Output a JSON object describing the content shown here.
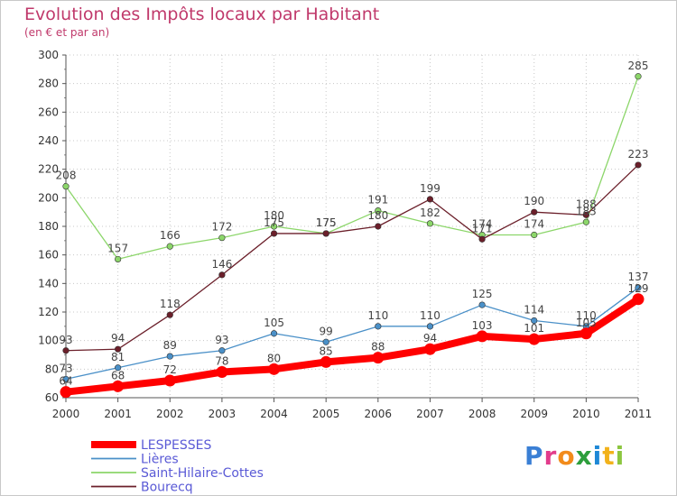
{
  "title": "Evolution des Impôts locaux par Habitant",
  "subtitle": "(en € et par an)",
  "logo": {
    "text": "Proxiti",
    "colors": [
      "#3a7fd5",
      "#e23c8c",
      "#f28b1b",
      "#2d9e3c",
      "#1e88d6",
      "#f2b21b",
      "#8cc63f"
    ]
  },
  "chart_data": {
    "type": "line",
    "categories": [
      "2000",
      "2001",
      "2002",
      "2003",
      "2004",
      "2005",
      "2006",
      "2007",
      "2008",
      "2009",
      "2010",
      "2011"
    ],
    "ylim": [
      60,
      300
    ],
    "yticks": [
      60,
      80,
      100,
      120,
      140,
      160,
      180,
      200,
      220,
      240,
      260,
      280,
      300
    ],
    "grid": true,
    "legend_position": "bottom-left",
    "series": [
      {
        "name": "LESPESSES",
        "color": "#ff0000",
        "values": [
          64,
          68,
          72,
          78,
          80,
          85,
          88,
          94,
          103,
          101,
          105,
          129
        ]
      },
      {
        "name": "Lières",
        "color": "#4a90c8",
        "values": [
          73,
          81,
          89,
          93,
          105,
          99,
          110,
          110,
          125,
          114,
          110,
          137
        ]
      },
      {
        "name": "Saint-Hilaire-Cottes",
        "color": "#8cd66a",
        "values": [
          208,
          157,
          166,
          172,
          180,
          175,
          191,
          182,
          174,
          174,
          183,
          285
        ]
      },
      {
        "name": "Bourecq",
        "color": "#6b1f2a",
        "values": [
          93,
          94,
          118,
          146,
          175,
          175,
          180,
          199,
          171,
          190,
          188,
          223
        ]
      }
    ]
  }
}
